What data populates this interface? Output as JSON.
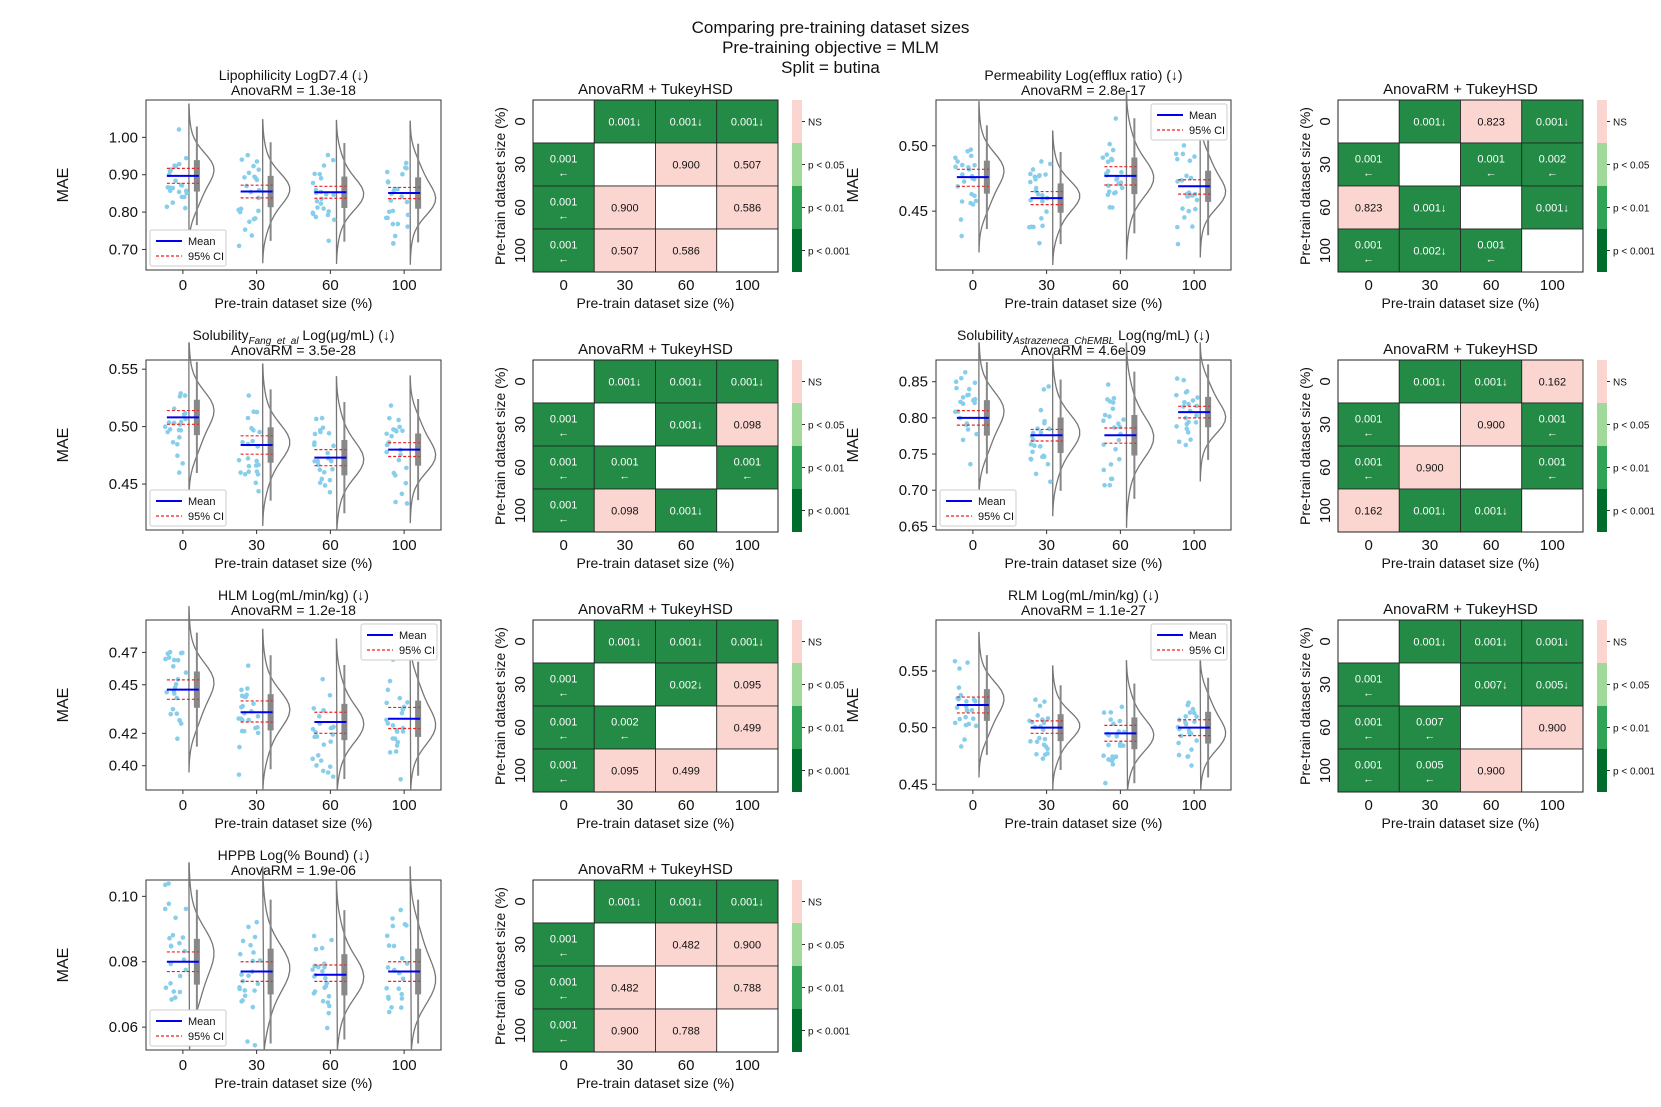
{
  "figure": {
    "title_line1": "Comparing pre-training dataset sizes",
    "title_line2": "Pre-training objective =  MLM",
    "title_line3": "Split = butina"
  },
  "common": {
    "xlabel": "Pre-train dataset size (%)",
    "ylabel_mae": "MAE",
    "ylabel_heatmap": "Pre-train dataset size (%)",
    "heatmap_title": "AnovaRM + TukeyHSD",
    "categories": [
      "0",
      "30",
      "60",
      "100"
    ],
    "legend_mean": "Mean",
    "legend_ci": "95% CI",
    "colorbar_labels": [
      "NS",
      "p < 0.05",
      "p < 0.01",
      "p < 0.001"
    ]
  },
  "colors": {
    "mean_line": "#0000ee",
    "ci_line": "#ee2222",
    "points": "#87ceeb",
    "violin": "#777777",
    "box": "#888888",
    "heat_ns": "#fbd5d0",
    "heat_sig": "#238b45",
    "cb_ns": "#fbd5d0",
    "cb_05": "#a1d99b",
    "cb_01": "#31a354",
    "cb_001": "#006d2c"
  },
  "chart_data": [
    {
      "type": "violin",
      "title": "Lipophilicity LogD7.4 (↓)",
      "subtitle": "AnovaRM = 1.3e-18",
      "ylim": [
        0.645,
        1.1
      ],
      "yticks": [
        0.7,
        0.8,
        0.9,
        1.0
      ],
      "ytick_labels": [
        "0.70",
        "0.80",
        "0.90",
        "1.00"
      ],
      "means": [
        0.897,
        0.855,
        0.853,
        0.851
      ],
      "ci": [
        [
          0.877,
          0.917
        ],
        [
          0.838,
          0.872
        ],
        [
          0.837,
          0.869
        ],
        [
          0.836,
          0.866
        ]
      ],
      "spread": [
        0.06,
        0.06,
        0.06,
        0.06
      ],
      "legend": "lower-left"
    },
    {
      "type": "heatmap",
      "title": "AnovaRM + TukeyHSD",
      "categories": [
        "0",
        "30",
        "60",
        "100"
      ],
      "cells": [
        [
          "",
          "0.001↓",
          "0.001↓",
          "0.001↓"
        ],
        [
          "0.001\n←",
          "",
          "0.900",
          "0.507"
        ],
        [
          "0.001\n←",
          "0.900",
          "",
          "0.586"
        ],
        [
          "0.001\n←",
          "0.507",
          "0.586",
          ""
        ]
      ],
      "significant": [
        [
          0,
          1,
          1,
          1
        ],
        [
          1,
          0,
          0,
          0
        ],
        [
          1,
          0,
          0,
          0
        ],
        [
          1,
          0,
          0,
          0
        ]
      ]
    },
    {
      "type": "violin",
      "title": "Permeability Log(efflux ratio) (↓)",
      "subtitle": "AnovaRM = 2.8e-17",
      "ylim": [
        0.405,
        0.535
      ],
      "yticks": [
        0.45,
        0.5
      ],
      "ytick_labels": [
        "0.45",
        "0.50"
      ],
      "means": [
        0.476,
        0.46,
        0.477,
        0.469
      ],
      "ci": [
        [
          0.469,
          0.482
        ],
        [
          0.455,
          0.465
        ],
        [
          0.47,
          0.484
        ],
        [
          0.463,
          0.474
        ]
      ],
      "spread": [
        0.018,
        0.016,
        0.02,
        0.017
      ],
      "legend": "upper-right"
    },
    {
      "type": "heatmap",
      "title": "AnovaRM + TukeyHSD",
      "categories": [
        "0",
        "30",
        "60",
        "100"
      ],
      "cells": [
        [
          "",
          "0.001↓",
          "0.823",
          "0.001↓"
        ],
        [
          "0.001\n←",
          "",
          "0.001\n←",
          "0.002\n←"
        ],
        [
          "0.823",
          "0.001↓",
          "",
          "0.001↓"
        ],
        [
          "0.001\n←",
          "0.002↓",
          "0.001\n←",
          ""
        ]
      ],
      "significant": [
        [
          0,
          1,
          0,
          1
        ],
        [
          1,
          0,
          1,
          1
        ],
        [
          0,
          1,
          0,
          1
        ],
        [
          1,
          1,
          1,
          0
        ]
      ]
    },
    {
      "type": "violin",
      "title": "Solubility",
      "title_sub": "Fang_et_al",
      "title_rest": " Log(μg/mL) (↓)",
      "subtitle": "AnovaRM = 3.5e-28",
      "ylim": [
        0.41,
        0.558
      ],
      "yticks": [
        0.45,
        0.5,
        0.55
      ],
      "ytick_labels": [
        "0.45",
        "0.50",
        "0.55"
      ],
      "means": [
        0.508,
        0.484,
        0.473,
        0.48
      ],
      "ci": [
        [
          0.502,
          0.514
        ],
        [
          0.476,
          0.492
        ],
        [
          0.466,
          0.48
        ],
        [
          0.474,
          0.486
        ]
      ],
      "spread": [
        0.022,
        0.022,
        0.022,
        0.02
      ],
      "legend": "lower-left"
    },
    {
      "type": "heatmap",
      "title": "AnovaRM + TukeyHSD",
      "categories": [
        "0",
        "30",
        "60",
        "100"
      ],
      "cells": [
        [
          "",
          "0.001↓",
          "0.001↓",
          "0.001↓"
        ],
        [
          "0.001\n←",
          "",
          "0.001↓",
          "0.098"
        ],
        [
          "0.001\n←",
          "0.001\n←",
          "",
          "0.001\n←"
        ],
        [
          "0.001\n←",
          "0.098",
          "0.001↓",
          ""
        ]
      ],
      "significant": [
        [
          0,
          1,
          1,
          1
        ],
        [
          1,
          0,
          1,
          0
        ],
        [
          1,
          1,
          0,
          1
        ],
        [
          1,
          0,
          1,
          0
        ]
      ]
    },
    {
      "type": "violin",
      "title": "Solubility",
      "title_sub": "Astrazeneca_ChEMBL",
      "title_rest": " Log(ng/mL) (↓)",
      "subtitle": "AnovaRM = 4.6e-09",
      "ylim": [
        0.645,
        0.88
      ],
      "yticks": [
        0.65,
        0.7,
        0.75,
        0.8,
        0.85
      ],
      "ytick_labels": [
        "0.65",
        "0.70",
        "0.75",
        "0.80",
        "0.85"
      ],
      "means": [
        0.8,
        0.776,
        0.776,
        0.808
      ],
      "ci": [
        [
          0.79,
          0.81
        ],
        [
          0.768,
          0.784
        ],
        [
          0.765,
          0.786
        ],
        [
          0.8,
          0.816
        ]
      ],
      "spread": [
        0.035,
        0.035,
        0.04,
        0.03
      ],
      "legend": "lower-left"
    },
    {
      "type": "heatmap",
      "title": "AnovaRM + TukeyHSD",
      "categories": [
        "0",
        "30",
        "60",
        "100"
      ],
      "cells": [
        [
          "",
          "0.001↓",
          "0.001↓",
          "0.162"
        ],
        [
          "0.001\n←",
          "",
          "0.900",
          "0.001\n←"
        ],
        [
          "0.001\n←",
          "0.900",
          "",
          "0.001\n←"
        ],
        [
          "0.162",
          "0.001↓",
          "0.001↓",
          ""
        ]
      ],
      "significant": [
        [
          0,
          1,
          1,
          0
        ],
        [
          1,
          0,
          0,
          1
        ],
        [
          1,
          0,
          0,
          1
        ],
        [
          0,
          1,
          1,
          0
        ]
      ]
    },
    {
      "type": "violin",
      "title": "HLM Log(mL/min/kg) (↓)",
      "subtitle": "AnovaRM = 1.2e-18",
      "ylim": [
        0.385,
        0.49
      ],
      "yticks": [
        0.4,
        0.42,
        0.45,
        0.47
      ],
      "ytick_labels": [
        "0.40",
        "0.42",
        "0.45",
        "0.47"
      ],
      "means": [
        0.447,
        0.433,
        0.427,
        0.429
      ],
      "ci": [
        [
          0.441,
          0.453
        ],
        [
          0.427,
          0.44
        ],
        [
          0.42,
          0.433
        ],
        [
          0.423,
          0.436
        ]
      ],
      "spread": [
        0.016,
        0.016,
        0.016,
        0.016
      ],
      "legend": "upper-right"
    },
    {
      "type": "heatmap",
      "title": "AnovaRM + TukeyHSD",
      "categories": [
        "0",
        "30",
        "60",
        "100"
      ],
      "cells": [
        [
          "",
          "0.001↓",
          "0.001↓",
          "0.001↓"
        ],
        [
          "0.001\n←",
          "",
          "0.002↓",
          "0.095"
        ],
        [
          "0.001\n←",
          "0.002\n←",
          "",
          "0.499"
        ],
        [
          "0.001\n←",
          "0.095",
          "0.499",
          ""
        ]
      ],
      "significant": [
        [
          0,
          1,
          1,
          1
        ],
        [
          1,
          0,
          1,
          0
        ],
        [
          1,
          1,
          0,
          0
        ],
        [
          1,
          0,
          0,
          0
        ]
      ]
    },
    {
      "type": "violin",
      "title": "RLM Log(mL/min/kg) (↓)",
      "subtitle": "AnovaRM = 1.1e-27",
      "ylim": [
        0.445,
        0.595
      ],
      "yticks": [
        0.45,
        0.5,
        0.55
      ],
      "ytick_labels": [
        "0.45",
        "0.50",
        "0.55"
      ],
      "means": [
        0.52,
        0.5,
        0.495,
        0.5
      ],
      "ci": [
        [
          0.513,
          0.527
        ],
        [
          0.495,
          0.506
        ],
        [
          0.488,
          0.502
        ],
        [
          0.493,
          0.507
        ]
      ],
      "spread": [
        0.02,
        0.017,
        0.02,
        0.02
      ],
      "legend": "upper-right"
    },
    {
      "type": "heatmap",
      "title": "AnovaRM + TukeyHSD",
      "categories": [
        "0",
        "30",
        "60",
        "100"
      ],
      "cells": [
        [
          "",
          "0.001↓",
          "0.001↓",
          "0.001↓"
        ],
        [
          "0.001\n←",
          "",
          "0.007↓",
          "0.005↓"
        ],
        [
          "0.001\n←",
          "0.007\n←",
          "",
          "0.900"
        ],
        [
          "0.001\n←",
          "0.005\n←",
          "0.900",
          ""
        ]
      ],
      "significant": [
        [
          0,
          1,
          1,
          1
        ],
        [
          1,
          0,
          1,
          1
        ],
        [
          1,
          1,
          0,
          0
        ],
        [
          1,
          1,
          0,
          0
        ]
      ]
    },
    {
      "type": "violin",
      "title": "HPPB Log(% Bound) (↓)",
      "subtitle": "AnovaRM = 1.9e-06",
      "ylim": [
        0.053,
        0.105
      ],
      "yticks": [
        0.06,
        0.08,
        0.1
      ],
      "ytick_labels": [
        "0.06",
        "0.08",
        "0.10"
      ],
      "means": [
        0.08,
        0.077,
        0.076,
        0.077
      ],
      "ci": [
        [
          0.077,
          0.083
        ],
        [
          0.074,
          0.08
        ],
        [
          0.074,
          0.079
        ],
        [
          0.074,
          0.08
        ]
      ],
      "spread": [
        0.01,
        0.01,
        0.009,
        0.01
      ],
      "legend": "lower-left"
    },
    {
      "type": "heatmap",
      "title": "AnovaRM + TukeyHSD",
      "categories": [
        "0",
        "30",
        "60",
        "100"
      ],
      "cells": [
        [
          "",
          "0.001↓",
          "0.001↓",
          "0.001↓"
        ],
        [
          "0.001\n←",
          "",
          "0.482",
          "0.900"
        ],
        [
          "0.001\n←",
          "0.482",
          "",
          "0.788"
        ],
        [
          "0.001\n←",
          "0.900",
          "0.788",
          ""
        ]
      ],
      "significant": [
        [
          0,
          1,
          1,
          1
        ],
        [
          1,
          0,
          0,
          0
        ],
        [
          1,
          0,
          0,
          0
        ],
        [
          1,
          0,
          0,
          0
        ]
      ]
    }
  ]
}
